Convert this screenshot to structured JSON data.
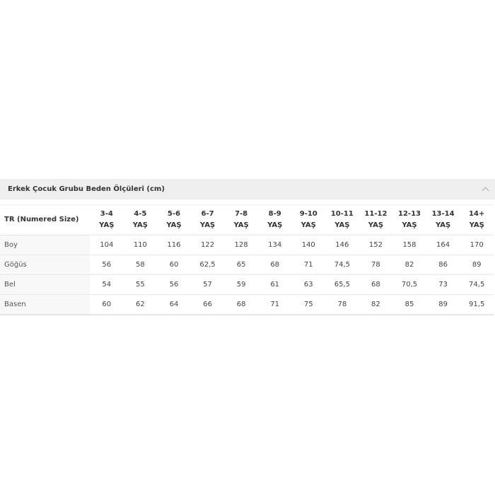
{
  "accordion": {
    "title": "Erkek Çocuk Grubu Beden Ölçüleri (cm)",
    "icon": "chevron-up-icon",
    "expanded": true
  },
  "table": {
    "corner": "TR (Numered Size)",
    "columns": [
      [
        "3-4",
        "YAŞ"
      ],
      [
        "4-5",
        "YAŞ"
      ],
      [
        "5-6",
        "YAŞ"
      ],
      [
        "6-7",
        "YAŞ"
      ],
      [
        "7-8",
        "YAŞ"
      ],
      [
        "8-9",
        "YAŞ"
      ],
      [
        "9-10",
        "YAŞ"
      ],
      [
        "10-11",
        "YAŞ"
      ],
      [
        "11-12",
        "YAŞ"
      ],
      [
        "12-13",
        "YAŞ"
      ],
      [
        "13-14",
        "YAŞ"
      ],
      [
        "14+",
        "YAŞ"
      ]
    ],
    "rows": [
      {
        "label": "Boy",
        "values": [
          "104",
          "110",
          "116",
          "122",
          "128",
          "134",
          "140",
          "146",
          "152",
          "158",
          "164",
          "170"
        ]
      },
      {
        "label": "Göğüs",
        "values": [
          "56",
          "58",
          "60",
          "62,5",
          "65",
          "68",
          "71",
          "74,5",
          "78",
          "82",
          "86",
          "89"
        ]
      },
      {
        "label": "Bel",
        "values": [
          "54",
          "55",
          "56",
          "57",
          "59",
          "61",
          "63",
          "65,5",
          "68",
          "70,5",
          "73",
          "74,5"
        ]
      },
      {
        "label": "Basen",
        "values": [
          "60",
          "62",
          "64",
          "66",
          "68",
          "71",
          "75",
          "78",
          "82",
          "85",
          "89",
          "91,5"
        ]
      }
    ]
  }
}
